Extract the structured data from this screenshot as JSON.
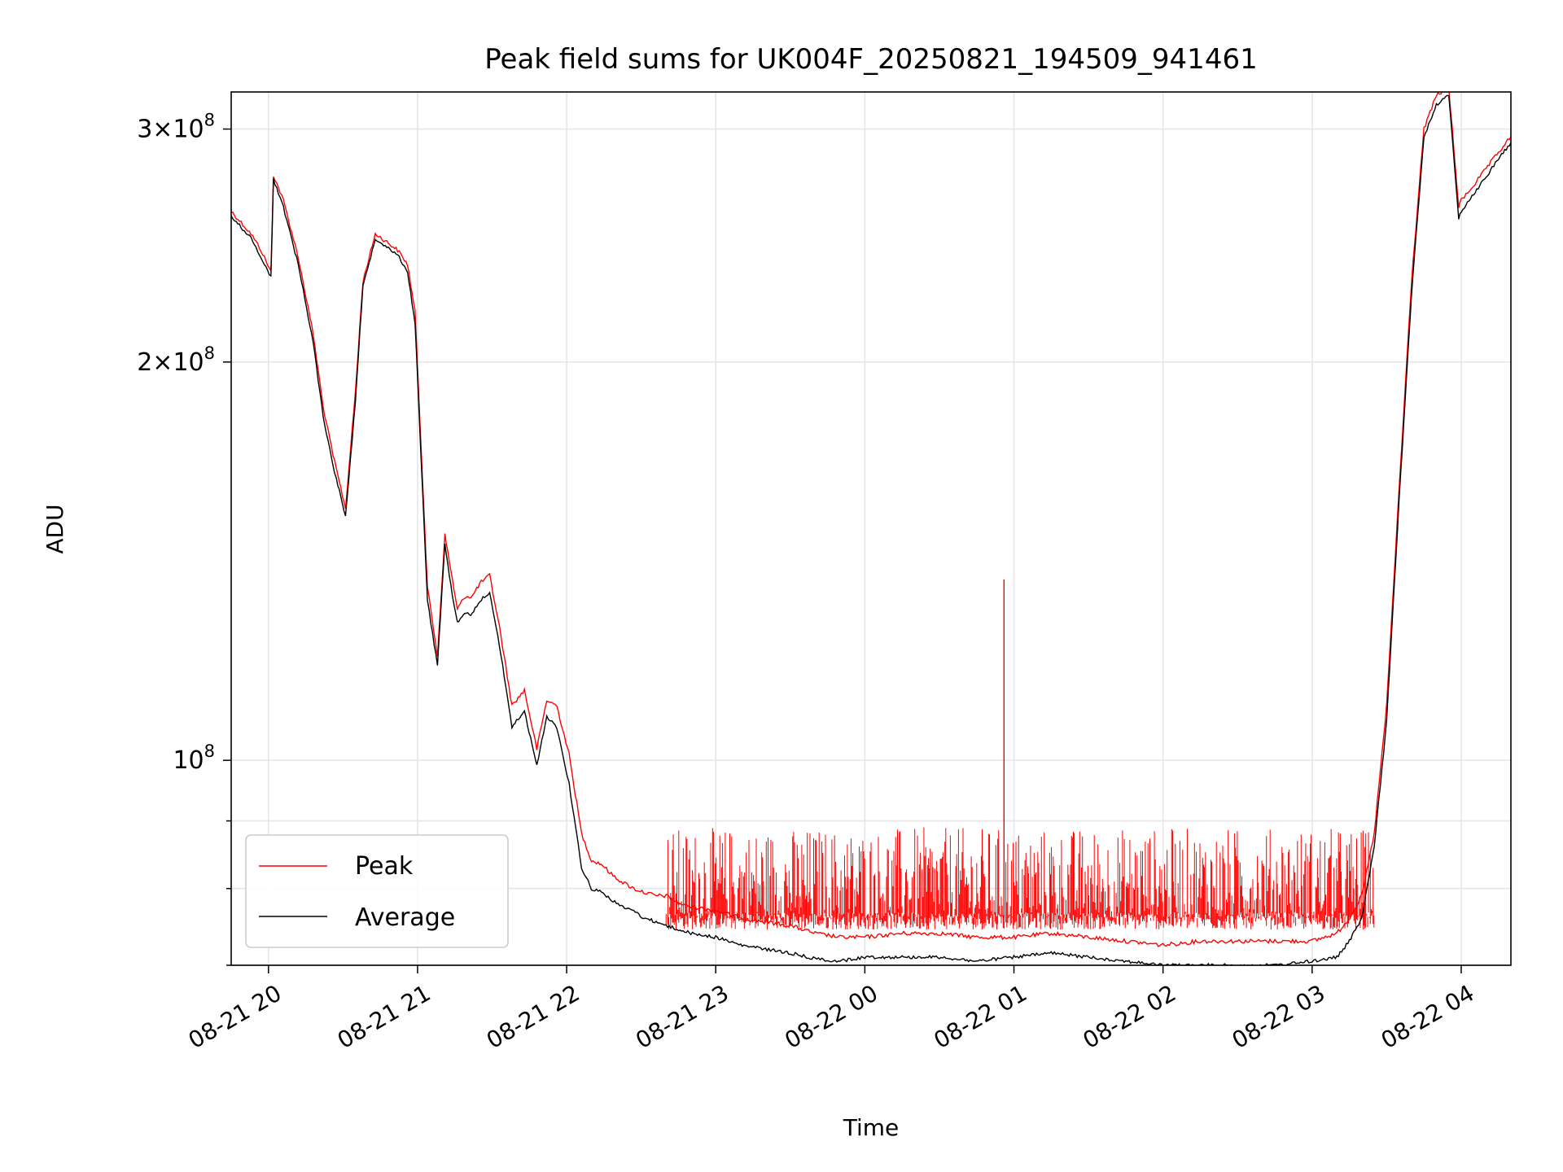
{
  "chart_data": {
    "type": "line",
    "title": "Peak field sums for UK004F_20250821_194509_941461",
    "xlabel": "Time",
    "ylabel": "ADU",
    "x_axis_type": "time",
    "xlim": [
      "2025-08-21 19:45",
      "2025-08-22 04:20"
    ],
    "ylim": [
      70000000,
      320000000
    ],
    "y_scale": "log",
    "grid": true,
    "legend_position": "lower-left",
    "x_ticks": [
      {
        "value": "2025-08-21 20:00",
        "label": "08-21 20"
      },
      {
        "value": "2025-08-21 21:00",
        "label": "08-21 21"
      },
      {
        "value": "2025-08-21 22:00",
        "label": "08-21 22"
      },
      {
        "value": "2025-08-21 23:00",
        "label": "08-21 23"
      },
      {
        "value": "2025-08-22 00:00",
        "label": "08-22 00"
      },
      {
        "value": "2025-08-22 01:00",
        "label": "08-22 01"
      },
      {
        "value": "2025-08-22 02:00",
        "label": "08-22 02"
      },
      {
        "value": "2025-08-22 03:00",
        "label": "08-22 03"
      },
      {
        "value": "2025-08-22 04:00",
        "label": "08-22 04"
      }
    ],
    "y_major_ticks": [
      {
        "value": 100000000,
        "mantissa": "",
        "exponent": "8"
      },
      {
        "value": 200000000,
        "mantissa": "2×",
        "exponent": "8"
      },
      {
        "value": 300000000,
        "mantissa": "3×",
        "exponent": "8"
      }
    ],
    "y_minor_ticks": [
      70000000,
      80000000,
      90000000
    ],
    "series": [
      {
        "name": "Peak",
        "color": "#ff0000",
        "x": [
          "2025-08-21 19:45",
          "2025-08-21 19:49",
          "2025-08-21 19:53",
          "2025-08-21 19:57",
          "2025-08-21 20:01",
          "2025-08-21 20:02",
          "2025-08-21 20:06",
          "2025-08-21 20:12",
          "2025-08-21 20:18",
          "2025-08-21 20:22",
          "2025-08-21 20:26",
          "2025-08-21 20:31",
          "2025-08-21 20:35",
          "2025-08-21 20:38",
          "2025-08-21 20:43",
          "2025-08-21 20:47",
          "2025-08-21 20:52",
          "2025-08-21 20:56",
          "2025-08-21 20:59",
          "2025-08-21 21:04",
          "2025-08-21 21:08",
          "2025-08-21 21:11",
          "2025-08-21 21:14",
          "2025-08-21 21:16",
          "2025-08-21 21:19",
          "2025-08-21 21:22",
          "2025-08-21 21:25",
          "2025-08-21 21:29",
          "2025-08-21 21:33",
          "2025-08-21 21:38",
          "2025-08-21 21:43",
          "2025-08-21 21:48",
          "2025-08-21 21:52",
          "2025-08-21 21:56",
          "2025-08-21 22:01",
          "2025-08-21 22:06",
          "2025-08-21 22:10",
          "2025-08-21 22:14",
          "2025-08-21 22:18",
          "2025-08-21 22:22",
          "2025-08-21 22:27",
          "2025-08-21 22:31",
          "2025-08-21 22:36",
          "2025-08-21 22:40",
          "2025-08-21 22:45",
          "2025-08-21 22:50",
          "2025-08-21 23:00",
          "2025-08-21 23:10",
          "2025-08-21 23:20",
          "2025-08-21 23:30",
          "2025-08-21 23:40",
          "2025-08-21 23:50",
          "2025-08-22 00:00",
          "2025-08-22 00:15",
          "2025-08-22 00:30",
          "2025-08-22 00:45",
          "2025-08-22 01:00",
          "2025-08-22 01:15",
          "2025-08-22 01:30",
          "2025-08-22 01:45",
          "2025-08-22 02:00",
          "2025-08-22 02:15",
          "2025-08-22 02:30",
          "2025-08-22 02:45",
          "2025-08-22 03:00",
          "2025-08-22 03:10",
          "2025-08-22 03:15",
          "2025-08-22 03:20",
          "2025-08-22 03:25",
          "2025-08-22 03:30",
          "2025-08-22 03:35",
          "2025-08-22 03:40",
          "2025-08-22 03:45",
          "2025-08-22 03:50",
          "2025-08-22 03:55",
          "2025-08-22 03:59",
          "2025-08-22 04:00",
          "2025-08-22 04:05",
          "2025-08-22 04:10",
          "2025-08-22 04:15",
          "2025-08-22 04:20"
        ],
        "y": [
          260000000,
          255000000,
          250000000,
          243000000,
          234000000,
          277000000,
          265000000,
          240000000,
          210000000,
          185000000,
          170000000,
          155000000,
          190000000,
          230000000,
          250000000,
          247000000,
          243000000,
          237000000,
          218000000,
          135000000,
          120000000,
          148000000,
          137000000,
          130000000,
          133000000,
          133000000,
          136000000,
          138000000,
          126000000,
          110000000,
          113000000,
          102000000,
          111000000,
          110000000,
          101000000,
          88000000,
          84000000,
          83500000,
          82000000,
          81000000,
          80000000,
          79500000,
          79000000,
          79000000,
          78000000,
          77500000,
          77000000,
          76000000,
          75500000,
          75000000,
          74000000,
          73500000,
          73500000,
          74000000,
          74000000,
          73500000,
          73500000,
          74000000,
          73500000,
          73000000,
          72500000,
          73000000,
          73000000,
          73000000,
          73000000,
          74000000,
          76000000,
          79000000,
          88000000,
          110000000,
          160000000,
          230000000,
          300000000,
          318000000,
          322000000,
          262000000,
          265000000,
          272000000,
          280000000,
          288000000,
          296000000
        ],
        "noise_band_y": [
          76000000,
          89000000
        ],
        "noise_band_x": [
          "2025-08-21 22:40",
          "2025-08-22 03:25"
        ],
        "spike": {
          "x": "2025-08-22 00:56",
          "y": 137000000
        }
      },
      {
        "name": "Average",
        "color": "#000000",
        "x": [
          "2025-08-21 19:45",
          "2025-08-21 19:49",
          "2025-08-21 19:53",
          "2025-08-21 19:57",
          "2025-08-21 20:01",
          "2025-08-21 20:02",
          "2025-08-21 20:06",
          "2025-08-21 20:12",
          "2025-08-21 20:18",
          "2025-08-21 20:22",
          "2025-08-21 20:26",
          "2025-08-21 20:31",
          "2025-08-21 20:35",
          "2025-08-21 20:38",
          "2025-08-21 20:43",
          "2025-08-21 20:47",
          "2025-08-21 20:52",
          "2025-08-21 20:56",
          "2025-08-21 20:59",
          "2025-08-21 21:04",
          "2025-08-21 21:08",
          "2025-08-21 21:11",
          "2025-08-21 21:14",
          "2025-08-21 21:16",
          "2025-08-21 21:19",
          "2025-08-21 21:22",
          "2025-08-21 21:25",
          "2025-08-21 21:29",
          "2025-08-21 21:33",
          "2025-08-21 21:38",
          "2025-08-21 21:43",
          "2025-08-21 21:48",
          "2025-08-21 21:52",
          "2025-08-21 21:56",
          "2025-08-21 22:01",
          "2025-08-21 22:06",
          "2025-08-21 22:10",
          "2025-08-21 22:14",
          "2025-08-21 22:18",
          "2025-08-21 22:22",
          "2025-08-21 22:27",
          "2025-08-21 22:31",
          "2025-08-21 22:36",
          "2025-08-21 22:40",
          "2025-08-21 22:45",
          "2025-08-21 22:50",
          "2025-08-21 23:00",
          "2025-08-21 23:10",
          "2025-08-21 23:20",
          "2025-08-21 23:30",
          "2025-08-21 23:40",
          "2025-08-21 23:50",
          "2025-08-22 00:00",
          "2025-08-22 00:15",
          "2025-08-22 00:30",
          "2025-08-22 00:45",
          "2025-08-22 01:00",
          "2025-08-22 01:15",
          "2025-08-22 01:30",
          "2025-08-22 01:45",
          "2025-08-22 02:00",
          "2025-08-22 02:15",
          "2025-08-22 02:30",
          "2025-08-22 02:45",
          "2025-08-22 03:00",
          "2025-08-22 03:10",
          "2025-08-22 03:15",
          "2025-08-22 03:20",
          "2025-08-22 03:25",
          "2025-08-22 03:30",
          "2025-08-22 03:35",
          "2025-08-22 03:40",
          "2025-08-22 03:45",
          "2025-08-22 03:50",
          "2025-08-22 03:55",
          "2025-08-22 03:59",
          "2025-08-22 04:00",
          "2025-08-22 04:05",
          "2025-08-22 04:10",
          "2025-08-22 04:15",
          "2025-08-22 04:20"
        ],
        "y": [
          258000000,
          253000000,
          248000000,
          240000000,
          232000000,
          275000000,
          262000000,
          237000000,
          207000000,
          182000000,
          167000000,
          153000000,
          187000000,
          228000000,
          248000000,
          245000000,
          241000000,
          234000000,
          214000000,
          132000000,
          118000000,
          146000000,
          133000000,
          127000000,
          129000000,
          129000000,
          132000000,
          134000000,
          122000000,
          106000000,
          109000000,
          99000000,
          108000000,
          106000000,
          96000000,
          83000000,
          80000000,
          79500000,
          78500000,
          77500000,
          77000000,
          76000000,
          75500000,
          75000000,
          74500000,
          74000000,
          73500000,
          72500000,
          72000000,
          71500000,
          70800000,
          70500000,
          71000000,
          71000000,
          71000000,
          70500000,
          71000000,
          71500000,
          71000000,
          70500000,
          70000000,
          70000000,
          70000000,
          70000000,
          70500000,
          71000000,
          73000000,
          76000000,
          86000000,
          107000000,
          157000000,
          225000000,
          296000000,
          313000000,
          318000000,
          257000000,
          260000000,
          268000000,
          276000000,
          285000000,
          293000000
        ]
      }
    ]
  }
}
